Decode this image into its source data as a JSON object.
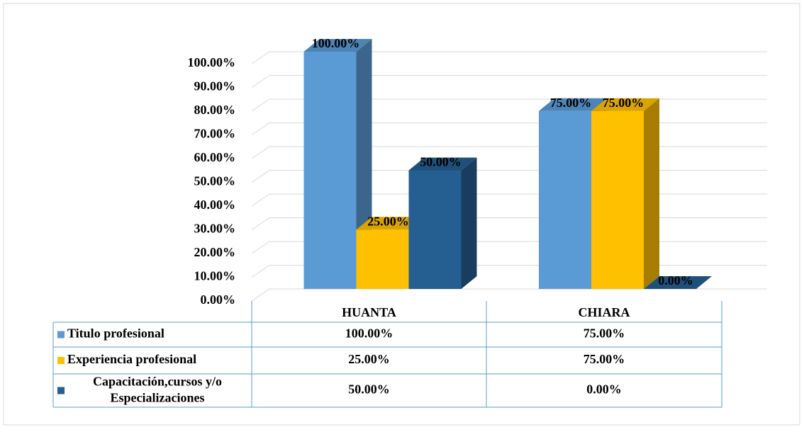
{
  "chart_data": {
    "type": "bar3d",
    "categories": [
      "HUANTA",
      "CHIARA"
    ],
    "series": [
      {
        "name": "Titulo profesional",
        "color": "#5b9bd5",
        "values": [
          100,
          75
        ],
        "value_labels": [
          "100.00%",
          "75.00%"
        ]
      },
      {
        "name": "Experiencia profesional",
        "color": "#ffc000",
        "values": [
          25,
          75
        ],
        "value_labels": [
          "25.00%",
          "75.00%"
        ]
      },
      {
        "name": "Capacitación,cursos y/o Especializaciones",
        "color": "#255e91",
        "values": [
          50,
          0
        ],
        "value_labels": [
          "50.00%",
          "0.00%"
        ]
      }
    ],
    "ylim": [
      0,
      100
    ],
    "yticks": [
      {
        "value": 0,
        "label": "0.00%"
      },
      {
        "value": 10,
        "label": "10.00%"
      },
      {
        "value": 20,
        "label": "20.00%"
      },
      {
        "value": 30,
        "label": "30.00%"
      },
      {
        "value": 40,
        "label": "40.00%"
      },
      {
        "value": 50,
        "label": "50.00%"
      },
      {
        "value": 60,
        "label": "60.00%"
      },
      {
        "value": 70,
        "label": "70.00%"
      },
      {
        "value": 80,
        "label": "80.00%"
      },
      {
        "value": 90,
        "label": "90.00%"
      },
      {
        "value": 100,
        "label": "100.00%"
      }
    ],
    "grid": true,
    "legend": "table"
  }
}
